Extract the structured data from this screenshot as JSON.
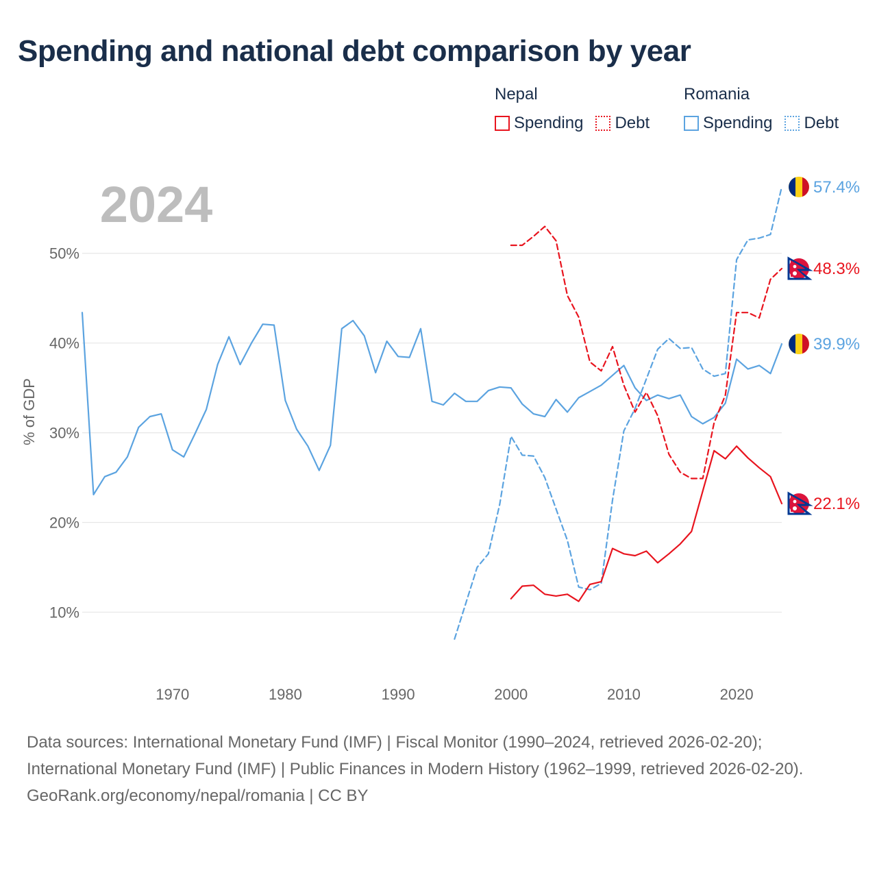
{
  "title": "Spending and national debt comparison by year",
  "legend": {
    "groups": [
      {
        "country": "Nepal",
        "items": [
          {
            "label": "Spending",
            "style": "solid",
            "color": "#e8141e"
          },
          {
            "label": "Debt",
            "style": "dotted",
            "color": "#e8141e"
          }
        ]
      },
      {
        "country": "Romania",
        "items": [
          {
            "label": "Spending",
            "style": "solid",
            "color": "#5ba3e0"
          },
          {
            "label": "Debt",
            "style": "dotted",
            "color": "#5ba3e0"
          }
        ]
      }
    ]
  },
  "footer": {
    "sources": "Data sources: International Monetary Fund (IMF) | Fiscal Monitor (1990–2024, retrieved 2026-02-20); International Monetary Fund (IMF) | Public Finances in Modern History (1962–1999, retrieved 2026-02-20).",
    "credit": "GeoRank.org/economy/nepal/romania | CC BY"
  },
  "chart_data": {
    "type": "line",
    "year_label": "2024",
    "ylabel": "% of GDP",
    "xlim": [
      1962,
      2024
    ],
    "ylim": [
      4,
      58
    ],
    "yticks": [
      10,
      20,
      30,
      40,
      50
    ],
    "ytick_labels": [
      "10%",
      "20%",
      "30%",
      "40%",
      "50%"
    ],
    "xticks": [
      1970,
      1980,
      1990,
      2000,
      2010,
      2020
    ],
    "xtick_labels": [
      "1970",
      "1980",
      "1990",
      "2000",
      "2010",
      "2020"
    ],
    "series": [
      {
        "name": "Romania Spending",
        "country": "Romania",
        "metric": "Spending",
        "color": "#5ba3e0",
        "dash": "solid",
        "end_label": "39.9%",
        "flag": "romania",
        "x": [
          1962,
          1963,
          1964,
          1965,
          1966,
          1967,
          1968,
          1969,
          1970,
          1971,
          1972,
          1973,
          1974,
          1975,
          1976,
          1977,
          1978,
          1979,
          1980,
          1981,
          1982,
          1983,
          1984,
          1985,
          1986,
          1987,
          1988,
          1989,
          1990,
          1991,
          1992,
          1993,
          1994,
          1995,
          1996,
          1997,
          1998,
          1999,
          2000,
          2001,
          2002,
          2003,
          2004,
          2005,
          2006,
          2007,
          2008,
          2009,
          2010,
          2011,
          2012,
          2013,
          2014,
          2015,
          2016,
          2017,
          2018,
          2019,
          2020,
          2021,
          2022,
          2023,
          2024
        ],
        "values": [
          43.4,
          23.1,
          25.1,
          25.6,
          27.3,
          30.6,
          31.8,
          32.1,
          28.1,
          27.3,
          29.9,
          32.6,
          37.6,
          40.7,
          37.6,
          40.0,
          42.1,
          42.0,
          33.6,
          30.4,
          28.5,
          25.8,
          28.6,
          41.6,
          42.5,
          40.8,
          36.7,
          40.2,
          38.5,
          38.4,
          41.6,
          33.5,
          33.1,
          34.4,
          33.5,
          33.5,
          34.7,
          35.1,
          35.0,
          33.2,
          32.1,
          31.8,
          33.7,
          32.3,
          33.9,
          34.6,
          35.3,
          36.4,
          37.5,
          35.0,
          33.6,
          34.2,
          33.8,
          34.2,
          31.8,
          31.0,
          31.7,
          33.3,
          38.2,
          37.1,
          37.5,
          36.6,
          39.9
        ]
      },
      {
        "name": "Romania Debt",
        "country": "Romania",
        "metric": "Debt",
        "color": "#5ba3e0",
        "dash": "dashed",
        "end_label": "57.4%",
        "flag": "romania",
        "x": [
          1995,
          1996,
          1997,
          1998,
          1999,
          2000,
          2001,
          2002,
          2003,
          2004,
          2005,
          2006,
          2007,
          2008,
          2009,
          2010,
          2011,
          2012,
          2013,
          2014,
          2015,
          2016,
          2017,
          2018,
          2019,
          2020,
          2021,
          2022,
          2023,
          2024
        ],
        "values": [
          7.0,
          11.0,
          15.0,
          16.5,
          22.0,
          29.6,
          27.5,
          27.4,
          25.0,
          21.5,
          18.0,
          12.8,
          12.5,
          13.2,
          22.5,
          30.2,
          32.7,
          36.0,
          39.3,
          40.5,
          39.4,
          39.5,
          37.1,
          36.3,
          36.6,
          49.3,
          51.5,
          51.7,
          52.1,
          57.4
        ]
      },
      {
        "name": "Nepal Spending",
        "country": "Nepal",
        "metric": "Spending",
        "color": "#e8141e",
        "dash": "solid",
        "end_label": "22.1%",
        "flag": "nepal",
        "x": [
          2000,
          2001,
          2002,
          2003,
          2004,
          2005,
          2006,
          2007,
          2008,
          2009,
          2010,
          2011,
          2012,
          2013,
          2014,
          2015,
          2016,
          2017,
          2018,
          2019,
          2020,
          2021,
          2022,
          2023,
          2024
        ],
        "values": [
          11.5,
          12.9,
          13.0,
          12.0,
          11.8,
          12.0,
          11.2,
          13.1,
          13.4,
          17.1,
          16.5,
          16.3,
          16.8,
          15.5,
          16.5,
          17.6,
          19.0,
          23.5,
          28.0,
          27.1,
          28.5,
          27.2,
          26.1,
          25.1,
          22.1
        ]
      },
      {
        "name": "Nepal Debt",
        "country": "Nepal",
        "metric": "Debt",
        "color": "#e8141e",
        "dash": "dashed",
        "end_label": "48.3%",
        "flag": "nepal",
        "x": [
          2000,
          2001,
          2002,
          2003,
          2004,
          2005,
          2006,
          2007,
          2008,
          2009,
          2010,
          2011,
          2012,
          2013,
          2014,
          2015,
          2016,
          2017,
          2018,
          2019,
          2020,
          2021,
          2022,
          2023,
          2024
        ],
        "values": [
          50.9,
          50.9,
          51.9,
          53.0,
          51.4,
          45.3,
          42.9,
          37.9,
          36.9,
          39.6,
          35.3,
          32.3,
          34.5,
          31.9,
          27.6,
          25.6,
          24.9,
          24.9,
          31.1,
          34.2,
          43.4,
          43.4,
          42.8,
          47.1,
          48.3
        ]
      }
    ]
  }
}
